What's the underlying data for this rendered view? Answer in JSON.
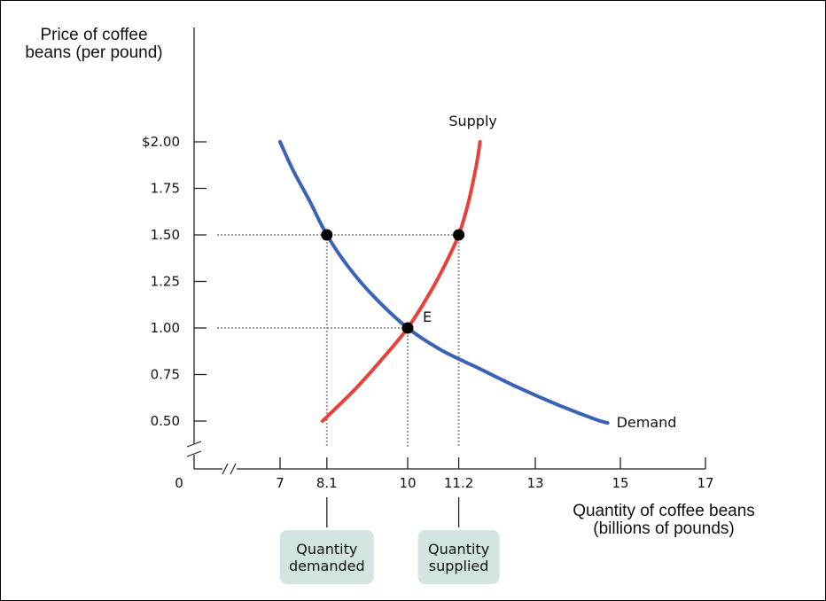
{
  "chart_data": {
    "type": "line",
    "ylabel": [
      "Price of coffee",
      "beans (per pound)"
    ],
    "xlabel": [
      "Quantity of coffee beans",
      "(billions of pounds)"
    ],
    "y_ticks": [
      {
        "value": 2.0,
        "label": "$2.00"
      },
      {
        "value": 1.75,
        "label": "1.75"
      },
      {
        "value": 1.5,
        "label": "1.50"
      },
      {
        "value": 1.25,
        "label": "1.25"
      },
      {
        "value": 1.0,
        "label": "1.00"
      },
      {
        "value": 0.75,
        "label": "0.75"
      },
      {
        "value": 0.5,
        "label": "0.50"
      }
    ],
    "x_ticks": [
      {
        "value": 7,
        "label": "7"
      },
      {
        "value": 8.1,
        "label": "8.1"
      },
      {
        "value": 10,
        "label": "10"
      },
      {
        "value": 11.2,
        "label": "11.2"
      },
      {
        "value": 13,
        "label": "13"
      },
      {
        "value": 15,
        "label": "15"
      },
      {
        "value": 17,
        "label": "17"
      }
    ],
    "origin_label": "0",
    "series": [
      {
        "name": "Supply",
        "color": "#e8413c",
        "points": [
          [
            8.0,
            0.5
          ],
          [
            8.8,
            0.68
          ],
          [
            9.5,
            0.86
          ],
          [
            10.0,
            1.0
          ],
          [
            10.5,
            1.18
          ],
          [
            10.9,
            1.35
          ],
          [
            11.2,
            1.5
          ],
          [
            11.4,
            1.65
          ],
          [
            11.55,
            1.8
          ],
          [
            11.65,
            1.92
          ],
          [
            11.7,
            2.0
          ]
        ]
      },
      {
        "name": "Demand",
        "color": "#3a62b5",
        "points": [
          [
            7.0,
            2.0
          ],
          [
            7.3,
            1.85
          ],
          [
            7.7,
            1.68
          ],
          [
            8.1,
            1.5
          ],
          [
            8.6,
            1.33
          ],
          [
            9.2,
            1.17
          ],
          [
            10.0,
            1.0
          ],
          [
            10.8,
            0.88
          ],
          [
            11.7,
            0.78
          ],
          [
            12.6,
            0.68
          ],
          [
            13.5,
            0.59
          ],
          [
            14.4,
            0.51
          ],
          [
            14.7,
            0.49
          ]
        ]
      }
    ],
    "points": [
      {
        "x": 8.1,
        "y": 1.5,
        "label": ""
      },
      {
        "x": 11.2,
        "y": 1.5,
        "label": ""
      },
      {
        "x": 10.0,
        "y": 1.0,
        "label": "E"
      }
    ],
    "callouts": [
      {
        "x": 8.1,
        "lines": [
          "Quantity",
          "demanded"
        ]
      },
      {
        "x": 11.2,
        "lines": [
          "Quantity",
          "supplied"
        ]
      }
    ],
    "xlim": [
      7,
      17
    ],
    "ylim": [
      0.5,
      2.0
    ],
    "grid": false
  }
}
